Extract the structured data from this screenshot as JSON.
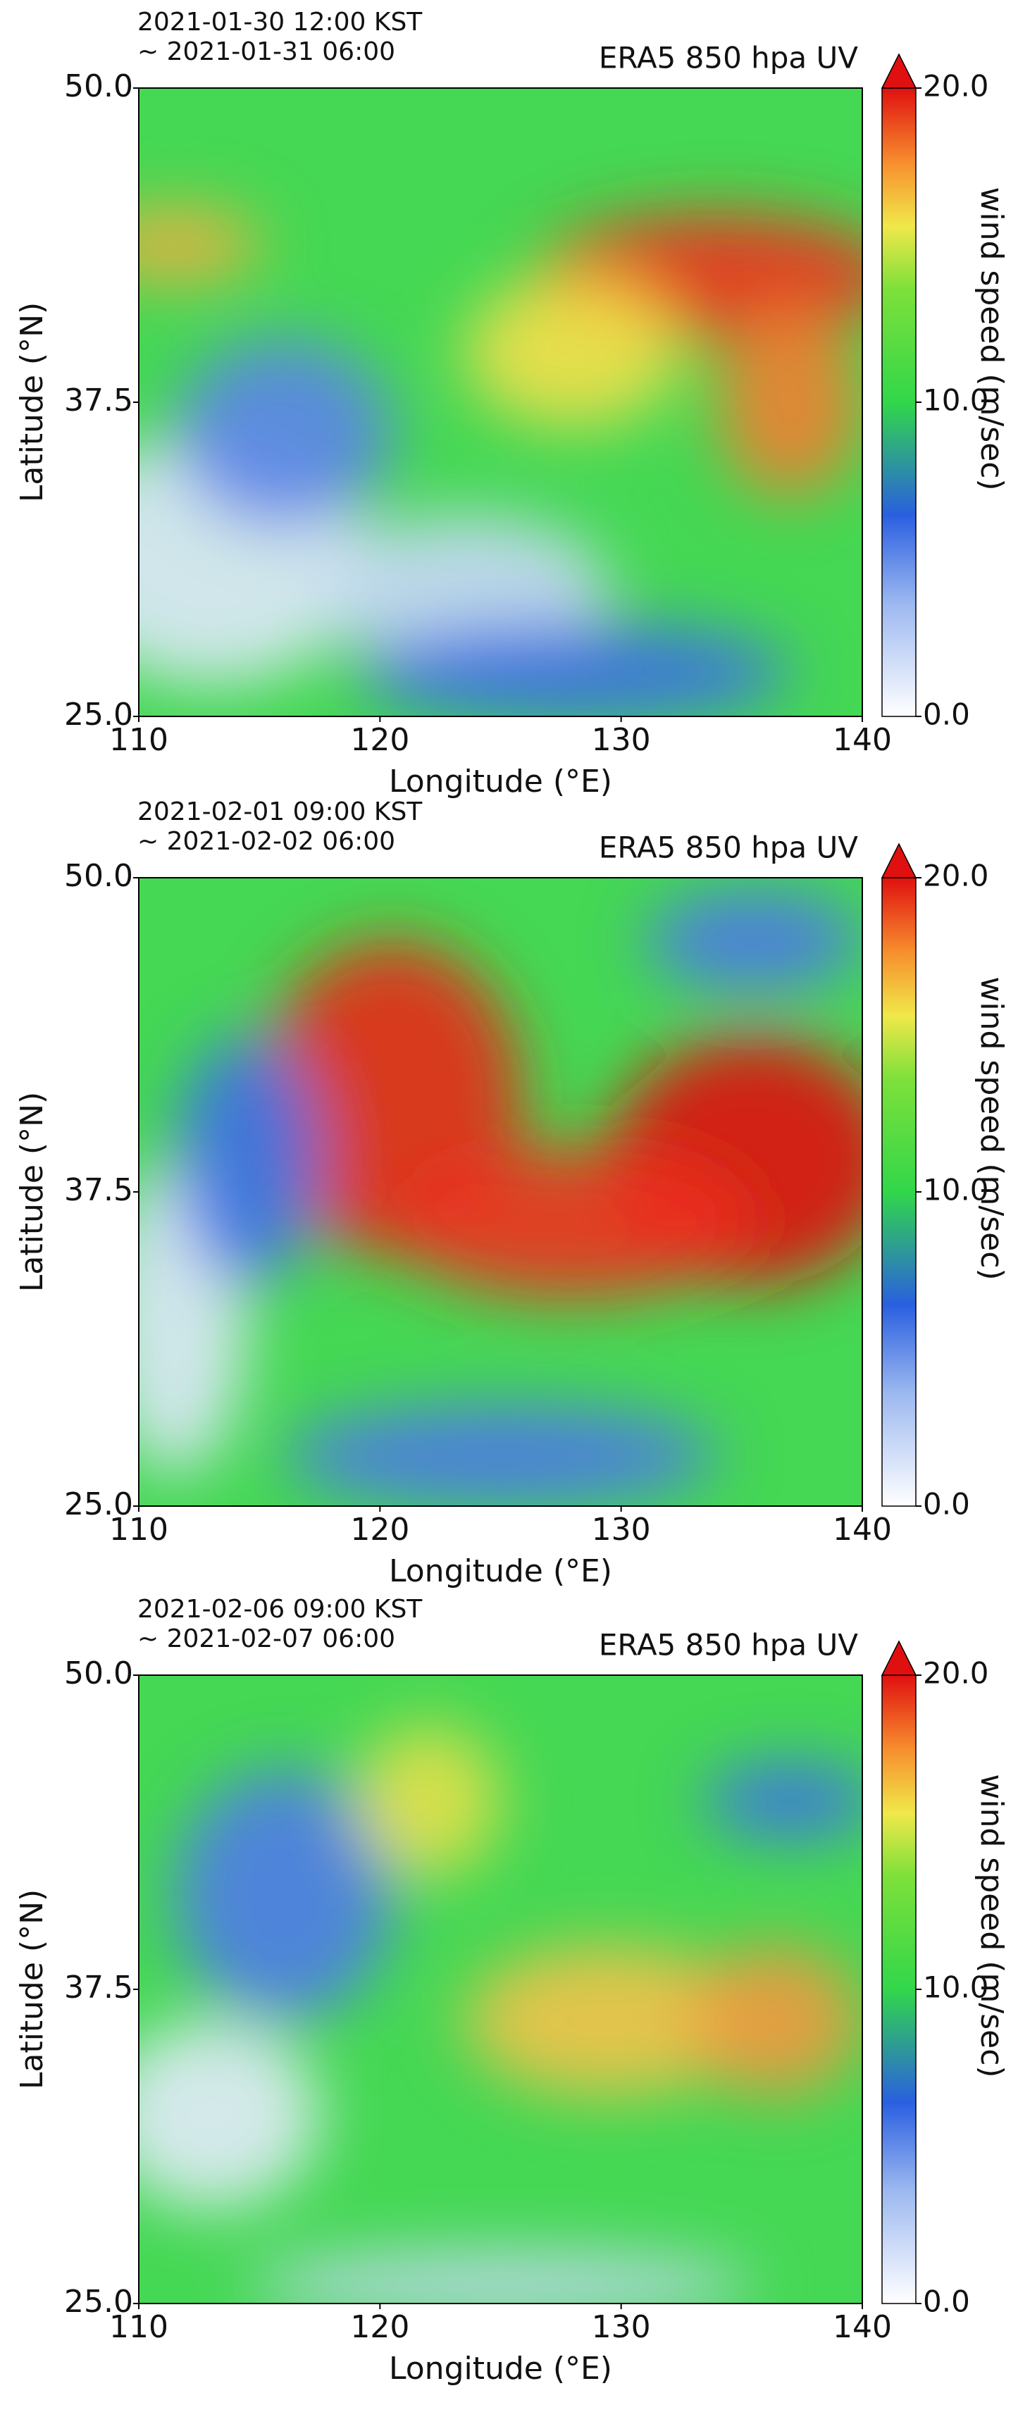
{
  "chart_data": [
    {
      "type": "map",
      "subtitle": [
        "2021-01-30 12:00 KST",
        "~ 2021-01-31 06:00"
      ],
      "title": "ERA5 850 hpa UV",
      "xlabel": "Longitude (°E)",
      "ylabel": "Latitude (°N)",
      "xlim": [
        110,
        140
      ],
      "xticks": [
        110,
        120,
        130,
        140
      ],
      "ylim": [
        25,
        50
      ],
      "yticks": [
        {
          "value": 25,
          "label": "25.0"
        },
        37.5,
        {
          "value": 50,
          "label": "50.0"
        }
      ],
      "colorbar": {
        "label": "wind speed (m/sec)",
        "lim": [
          0,
          20
        ],
        "ticks": [
          {
            "value": 0,
            "label": "0.0"
          },
          {
            "value": 10,
            "label": "10.0"
          },
          {
            "value": 20,
            "label": "20.0"
          }
        ]
      }
    },
    {
      "type": "map",
      "subtitle": [
        "2021-02-01 09:00 KST",
        "~ 2021-02-02 06:00"
      ],
      "title": "ERA5 850 hpa UV",
      "xlabel": "Longitude (°E)",
      "ylabel": "Latitude (°N)",
      "xlim": [
        110,
        140
      ],
      "xticks": [
        110,
        120,
        130,
        140
      ],
      "ylim": [
        25,
        50
      ],
      "yticks": [
        {
          "value": 25,
          "label": "25.0"
        },
        37.5,
        {
          "value": 50,
          "label": "50.0"
        }
      ],
      "colorbar": {
        "label": "wind speed (m/sec)",
        "lim": [
          0,
          20
        ],
        "ticks": [
          {
            "value": 0,
            "label": "0.0"
          },
          {
            "value": 10,
            "label": "10.0"
          },
          {
            "value": 20,
            "label": "20.0"
          }
        ]
      }
    },
    {
      "type": "map",
      "subtitle": [
        "2021-02-06 09:00 KST",
        "~ 2021-02-07 06:00"
      ],
      "title": "ERA5 850 hpa UV",
      "xlabel": "Longitude (°E)",
      "ylabel": "Latitude (°N)",
      "xlim": [
        110,
        140
      ],
      "xticks": [
        110,
        120,
        130,
        140
      ],
      "ylim": [
        25,
        50
      ],
      "yticks": [
        {
          "value": 25,
          "label": "25.0"
        },
        37.5,
        {
          "value": 50,
          "label": "50.0"
        }
      ],
      "colorbar": {
        "label": "wind speed (m/sec)",
        "lim": [
          0,
          20
        ],
        "ticks": [
          {
            "value": 0,
            "label": "0.0"
          },
          {
            "value": 10,
            "label": "10.0"
          },
          {
            "value": 20,
            "label": "20.0"
          }
        ]
      }
    }
  ]
}
